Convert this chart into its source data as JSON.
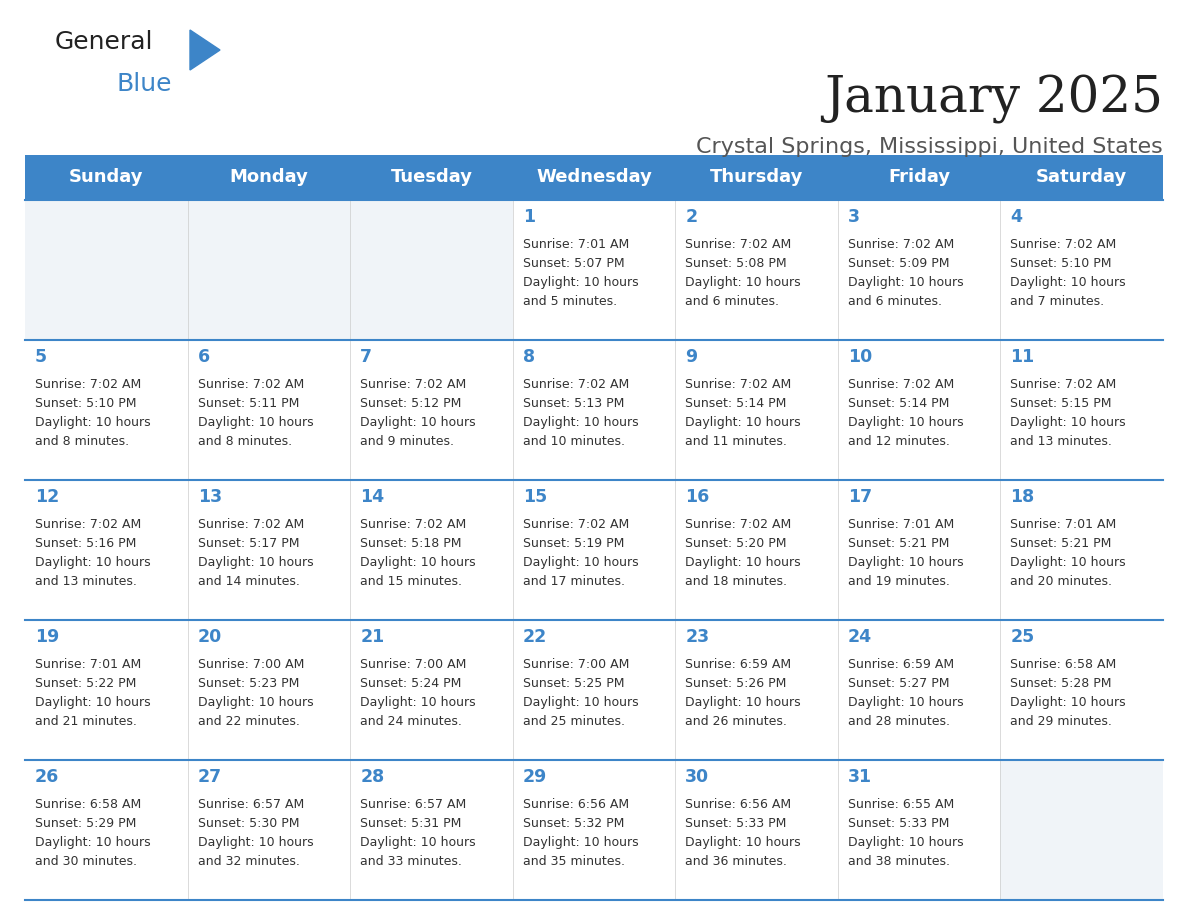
{
  "title": "January 2025",
  "subtitle": "Crystal Springs, Mississippi, United States",
  "header_bg": "#3d85c8",
  "header_text_color": "#ffffff",
  "cell_bg_empty": "#f0f4f8",
  "cell_bg_filled": "#ffffff",
  "day_number_color": "#3d85c8",
  "text_color": "#333333",
  "border_color": "#3d85c8",
  "days_of_week": [
    "Sunday",
    "Monday",
    "Tuesday",
    "Wednesday",
    "Thursday",
    "Friday",
    "Saturday"
  ],
  "weeks": [
    [
      {
        "day": null,
        "info": null
      },
      {
        "day": null,
        "info": null
      },
      {
        "day": null,
        "info": null
      },
      {
        "day": 1,
        "info": "Sunrise: 7:01 AM\nSunset: 5:07 PM\nDaylight: 10 hours\nand 5 minutes."
      },
      {
        "day": 2,
        "info": "Sunrise: 7:02 AM\nSunset: 5:08 PM\nDaylight: 10 hours\nand 6 minutes."
      },
      {
        "day": 3,
        "info": "Sunrise: 7:02 AM\nSunset: 5:09 PM\nDaylight: 10 hours\nand 6 minutes."
      },
      {
        "day": 4,
        "info": "Sunrise: 7:02 AM\nSunset: 5:10 PM\nDaylight: 10 hours\nand 7 minutes."
      }
    ],
    [
      {
        "day": 5,
        "info": "Sunrise: 7:02 AM\nSunset: 5:10 PM\nDaylight: 10 hours\nand 8 minutes."
      },
      {
        "day": 6,
        "info": "Sunrise: 7:02 AM\nSunset: 5:11 PM\nDaylight: 10 hours\nand 8 minutes."
      },
      {
        "day": 7,
        "info": "Sunrise: 7:02 AM\nSunset: 5:12 PM\nDaylight: 10 hours\nand 9 minutes."
      },
      {
        "day": 8,
        "info": "Sunrise: 7:02 AM\nSunset: 5:13 PM\nDaylight: 10 hours\nand 10 minutes."
      },
      {
        "day": 9,
        "info": "Sunrise: 7:02 AM\nSunset: 5:14 PM\nDaylight: 10 hours\nand 11 minutes."
      },
      {
        "day": 10,
        "info": "Sunrise: 7:02 AM\nSunset: 5:14 PM\nDaylight: 10 hours\nand 12 minutes."
      },
      {
        "day": 11,
        "info": "Sunrise: 7:02 AM\nSunset: 5:15 PM\nDaylight: 10 hours\nand 13 minutes."
      }
    ],
    [
      {
        "day": 12,
        "info": "Sunrise: 7:02 AM\nSunset: 5:16 PM\nDaylight: 10 hours\nand 13 minutes."
      },
      {
        "day": 13,
        "info": "Sunrise: 7:02 AM\nSunset: 5:17 PM\nDaylight: 10 hours\nand 14 minutes."
      },
      {
        "day": 14,
        "info": "Sunrise: 7:02 AM\nSunset: 5:18 PM\nDaylight: 10 hours\nand 15 minutes."
      },
      {
        "day": 15,
        "info": "Sunrise: 7:02 AM\nSunset: 5:19 PM\nDaylight: 10 hours\nand 17 minutes."
      },
      {
        "day": 16,
        "info": "Sunrise: 7:02 AM\nSunset: 5:20 PM\nDaylight: 10 hours\nand 18 minutes."
      },
      {
        "day": 17,
        "info": "Sunrise: 7:01 AM\nSunset: 5:21 PM\nDaylight: 10 hours\nand 19 minutes."
      },
      {
        "day": 18,
        "info": "Sunrise: 7:01 AM\nSunset: 5:21 PM\nDaylight: 10 hours\nand 20 minutes."
      }
    ],
    [
      {
        "day": 19,
        "info": "Sunrise: 7:01 AM\nSunset: 5:22 PM\nDaylight: 10 hours\nand 21 minutes."
      },
      {
        "day": 20,
        "info": "Sunrise: 7:00 AM\nSunset: 5:23 PM\nDaylight: 10 hours\nand 22 minutes."
      },
      {
        "day": 21,
        "info": "Sunrise: 7:00 AM\nSunset: 5:24 PM\nDaylight: 10 hours\nand 24 minutes."
      },
      {
        "day": 22,
        "info": "Sunrise: 7:00 AM\nSunset: 5:25 PM\nDaylight: 10 hours\nand 25 minutes."
      },
      {
        "day": 23,
        "info": "Sunrise: 6:59 AM\nSunset: 5:26 PM\nDaylight: 10 hours\nand 26 minutes."
      },
      {
        "day": 24,
        "info": "Sunrise: 6:59 AM\nSunset: 5:27 PM\nDaylight: 10 hours\nand 28 minutes."
      },
      {
        "day": 25,
        "info": "Sunrise: 6:58 AM\nSunset: 5:28 PM\nDaylight: 10 hours\nand 29 minutes."
      }
    ],
    [
      {
        "day": 26,
        "info": "Sunrise: 6:58 AM\nSunset: 5:29 PM\nDaylight: 10 hours\nand 30 minutes."
      },
      {
        "day": 27,
        "info": "Sunrise: 6:57 AM\nSunset: 5:30 PM\nDaylight: 10 hours\nand 32 minutes."
      },
      {
        "day": 28,
        "info": "Sunrise: 6:57 AM\nSunset: 5:31 PM\nDaylight: 10 hours\nand 33 minutes."
      },
      {
        "day": 29,
        "info": "Sunrise: 6:56 AM\nSunset: 5:32 PM\nDaylight: 10 hours\nand 35 minutes."
      },
      {
        "day": 30,
        "info": "Sunrise: 6:56 AM\nSunset: 5:33 PM\nDaylight: 10 hours\nand 36 minutes."
      },
      {
        "day": 31,
        "info": "Sunrise: 6:55 AM\nSunset: 5:33 PM\nDaylight: 10 hours\nand 38 minutes."
      },
      {
        "day": null,
        "info": null
      }
    ]
  ]
}
